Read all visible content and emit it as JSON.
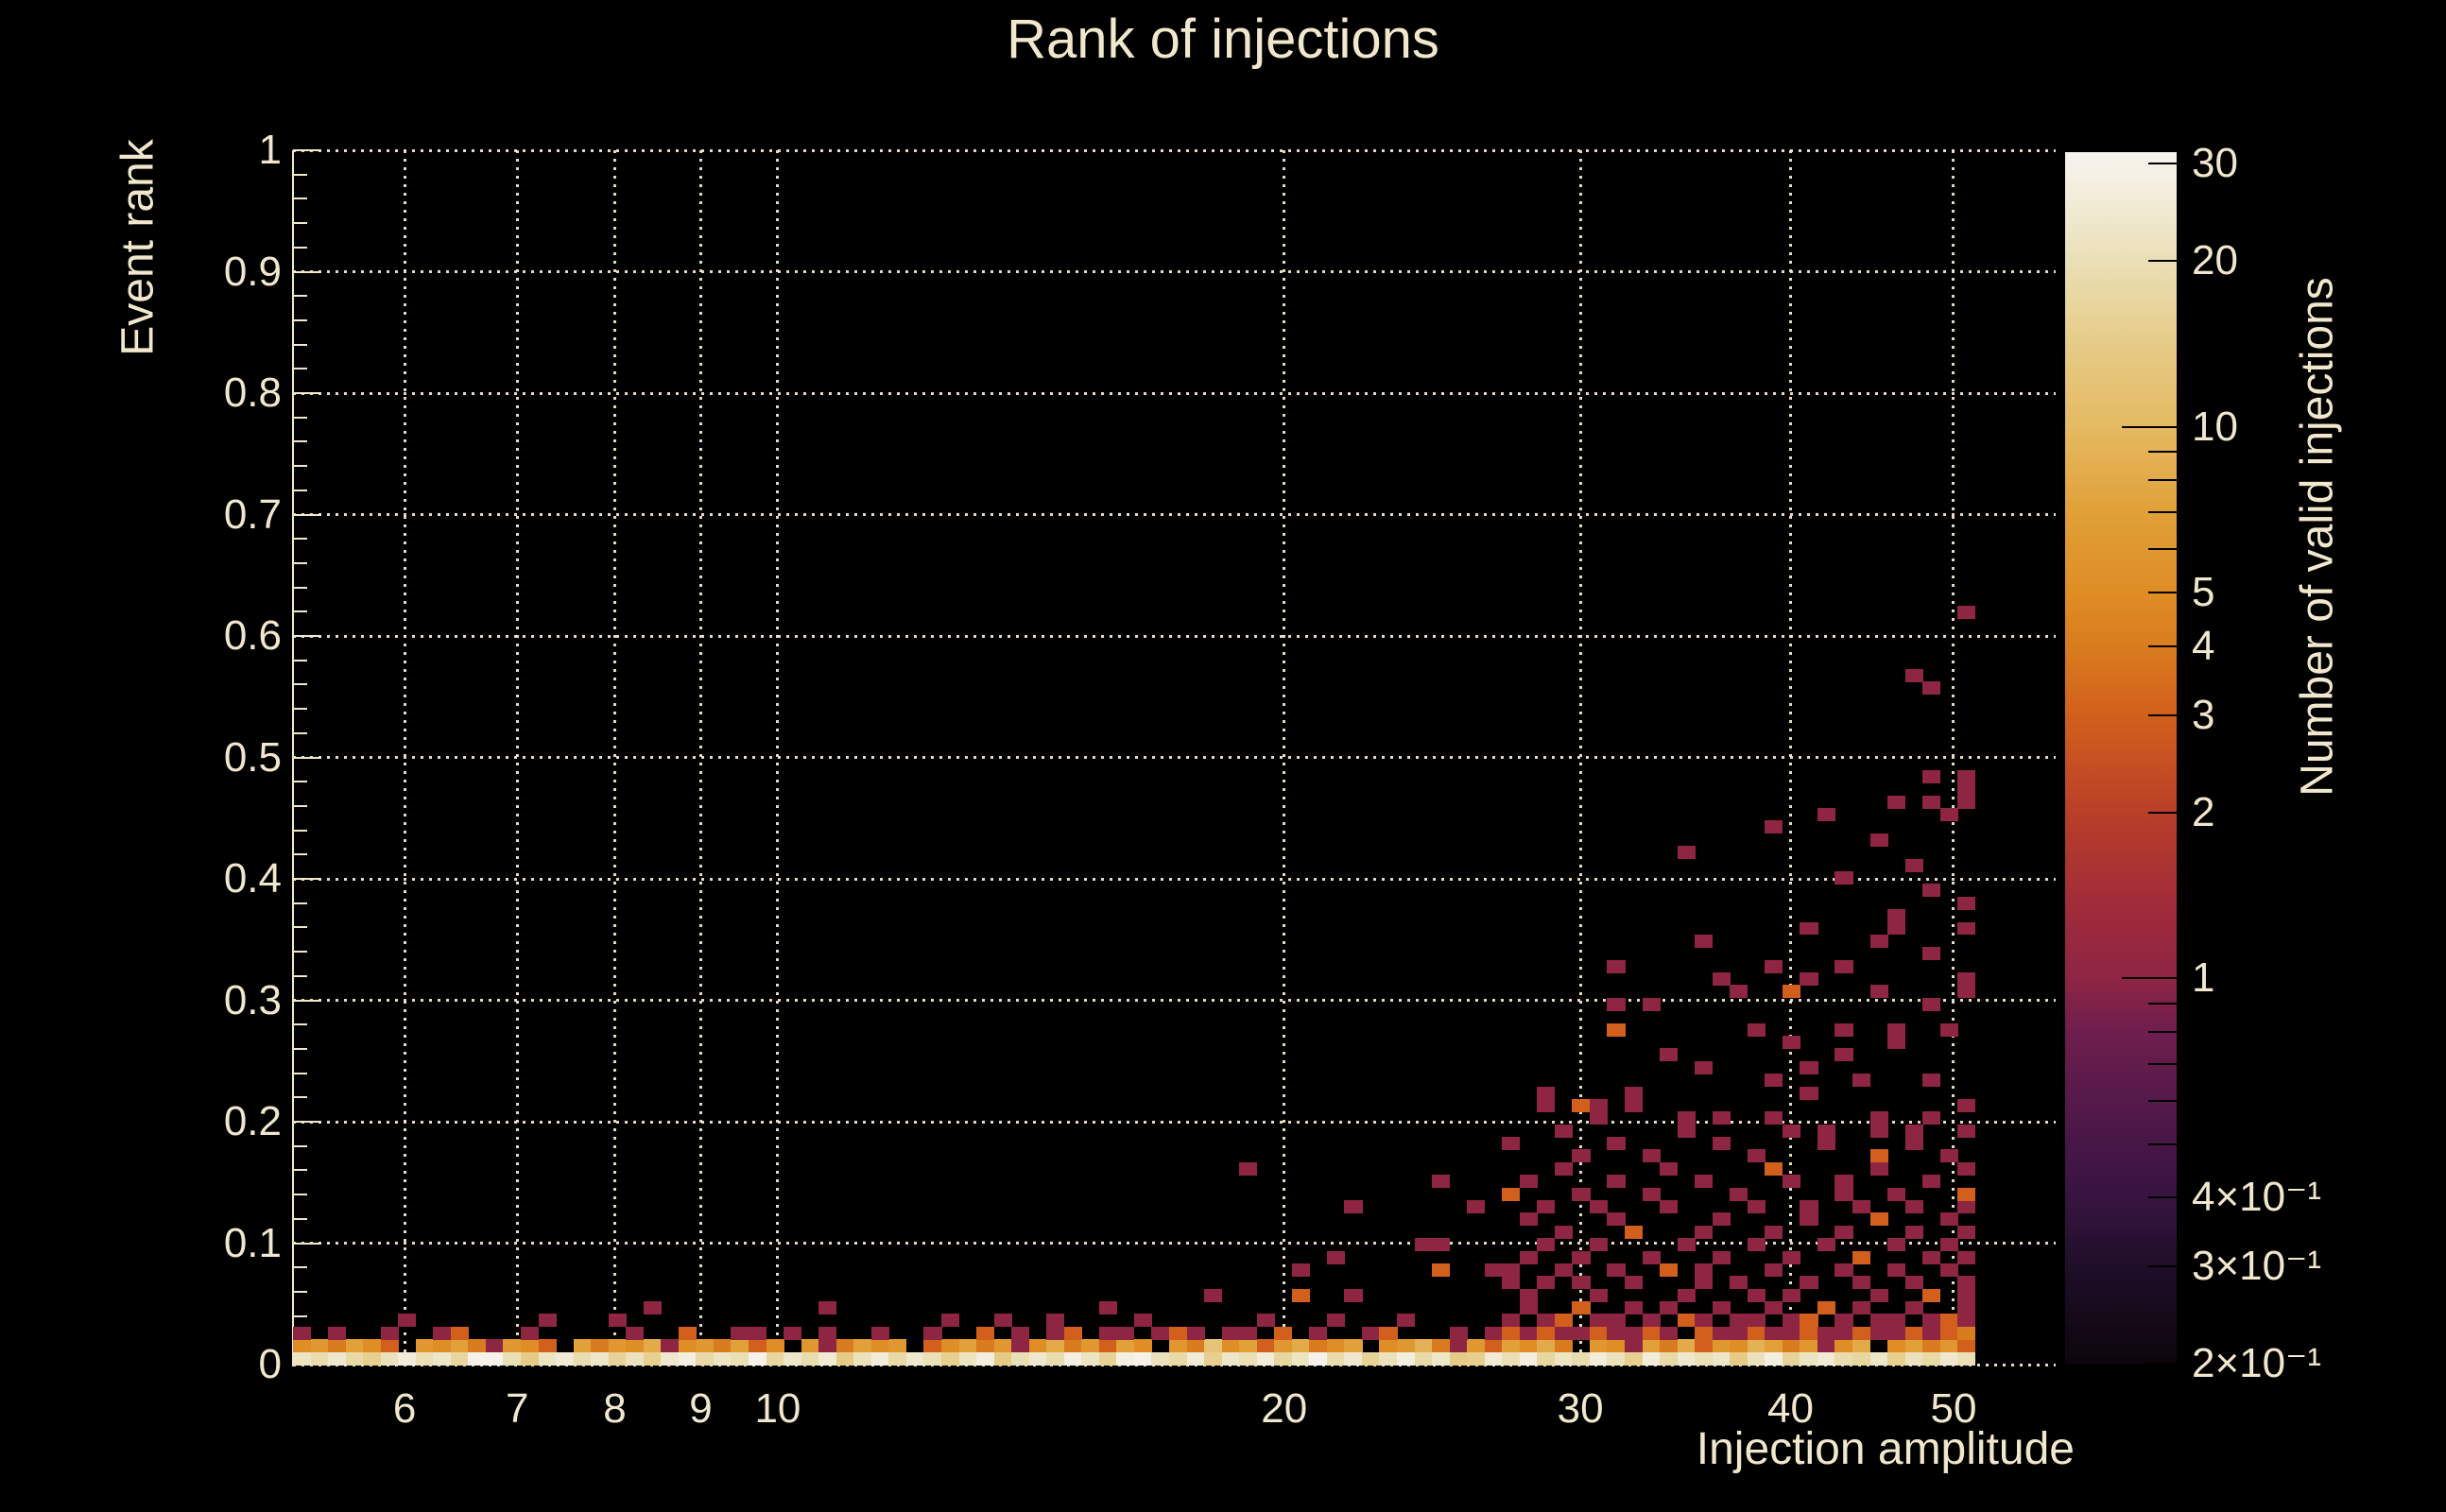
{
  "title": "Rank of injections",
  "colors": {
    "background": "#000000",
    "text": "#f0e7cc",
    "gridline": "#efe7ca",
    "colorbar_tick": "#000000"
  },
  "chart_data": {
    "type": "heatmap",
    "title": "Rank of injections",
    "xlabel": "Injection amplitude",
    "ylabel": "Event rank",
    "zlabel": "Number of valid injections",
    "x_scale": "log",
    "xlim": [
      5.15,
      57.5
    ],
    "y_scale": "linear",
    "ylim": [
      0,
      1
    ],
    "grid_on": true,
    "x_ticks": [
      {
        "v": 6,
        "label": "6"
      },
      {
        "v": 7,
        "label": "7"
      },
      {
        "v": 8,
        "label": "8"
      },
      {
        "v": 9,
        "label": "9"
      },
      {
        "v": 10,
        "label": "10"
      },
      {
        "v": 20,
        "label": "20"
      },
      {
        "v": 30,
        "label": "30"
      },
      {
        "v": 40,
        "label": "40"
      },
      {
        "v": 50,
        "label": "50"
      }
    ],
    "y_ticks": [
      {
        "v": 0,
        "label": "0"
      },
      {
        "v": 0.1,
        "label": "0.1"
      },
      {
        "v": 0.2,
        "label": "0.2"
      },
      {
        "v": 0.3,
        "label": "0.3"
      },
      {
        "v": 0.4,
        "label": "0.4"
      },
      {
        "v": 0.5,
        "label": "0.5"
      },
      {
        "v": 0.6,
        "label": "0.6"
      },
      {
        "v": 0.7,
        "label": "0.7"
      },
      {
        "v": 0.8,
        "label": "0.8"
      },
      {
        "v": 0.9,
        "label": "0.9"
      },
      {
        "v": 1,
        "label": "1"
      }
    ],
    "y_minor_step": 0.02,
    "grid": {
      "nx": 96,
      "ny": 96,
      "x_data_min": 5.15,
      "x_data_max": 51.5
    },
    "colorbar": {
      "scale": "log",
      "zlim": [
        0.2,
        31.5
      ],
      "labeled_ticks": [
        {
          "z": 30,
          "label": "30"
        },
        {
          "z": 20,
          "label": "20"
        },
        {
          "z": 10,
          "label": "10"
        },
        {
          "z": 5,
          "label": "5"
        },
        {
          "z": 4,
          "label": "4"
        },
        {
          "z": 3,
          "label": "3"
        },
        {
          "z": 2,
          "label": "2"
        },
        {
          "z": 1,
          "label": "1"
        },
        {
          "z": 0.4,
          "label": "4×10⁻¹"
        },
        {
          "z": 0.3,
          "label": "3×10⁻¹"
        },
        {
          "z": 0.2,
          "label": "2×10⁻¹"
        }
      ],
      "decade_ticks": [
        1,
        10
      ],
      "minor_ticks": [
        0.5,
        0.6,
        0.7,
        0.8,
        0.9,
        6,
        7,
        8,
        9
      ],
      "colormap_stops": [
        [
          0.2,
          "#0b060b"
        ],
        [
          0.3,
          "#200e29"
        ],
        [
          0.4,
          "#371440"
        ],
        [
          0.55,
          "#4e1849"
        ],
        [
          0.8,
          "#6e1e4e"
        ],
        [
          1.0,
          "#8e2543"
        ],
        [
          1.3,
          "#9e2a3c"
        ],
        [
          2.0,
          "#b93f28"
        ],
        [
          3.0,
          "#d2601c"
        ],
        [
          4.0,
          "#d97c1f"
        ],
        [
          5.0,
          "#df8d25"
        ],
        [
          7.0,
          "#e1a038"
        ],
        [
          10,
          "#e5ba62"
        ],
        [
          14,
          "#e6cb86"
        ],
        [
          20,
          "#eadfb5"
        ],
        [
          26,
          "#f2ecd9"
        ],
        [
          31.5,
          "#f7f4ef"
        ]
      ]
    },
    "rows": {
      "row0": [
        22,
        19,
        24,
        18,
        15,
        21,
        26,
        20,
        23,
        17,
        30,
        30,
        20,
        14,
        22,
        25,
        19,
        23,
        16,
        21,
        15,
        24,
        28,
        18,
        22,
        20,
        30,
        17,
        23,
        19,
        25,
        14,
        21,
        26,
        18,
        24,
        20,
        15,
        22,
        27,
        14,
        20,
        24,
        19,
        28,
        22,
        16,
        28,
        30,
        21,
        18,
        25,
        15,
        23,
        20,
        26,
        17,
        22,
        30,
        19,
        24,
        16,
        21,
        27,
        18,
        23,
        14,
        15,
        25,
        20,
        28,
        17,
        22,
        19,
        26,
        21,
        15,
        26,
        18,
        24,
        20,
        23,
        14,
        21,
        27,
        16,
        22,
        25,
        19,
        17,
        23,
        15,
        21,
        18,
        24,
        20
      ],
      "row1": [
        5,
        6,
        4,
        7,
        5,
        3,
        0,
        6,
        5,
        7,
        4,
        1,
        6,
        5,
        3,
        0,
        7,
        4,
        6,
        5,
        8,
        1,
        5,
        6,
        4,
        7,
        3,
        5,
        0,
        6,
        1,
        4,
        7,
        5,
        6,
        0,
        3,
        5,
        7,
        4,
        6,
        1,
        5,
        8,
        4,
        6,
        3,
        7,
        5,
        0,
        6,
        4,
        12,
        5,
        7,
        3,
        6,
        8,
        4,
        5,
        7,
        0,
        5,
        6,
        9,
        4,
        1,
        6,
        3,
        7,
        5,
        8,
        4,
        0,
        6,
        5,
        1,
        7,
        4,
        8,
        3,
        6,
        5,
        9,
        7,
        4,
        6,
        1,
        5,
        8,
        0,
        5,
        7,
        4,
        6,
        3
      ]
    },
    "cells": [
      [
        0,
        2,
        1
      ],
      [
        2,
        2,
        1
      ],
      [
        5,
        2,
        1
      ],
      [
        6,
        3,
        1
      ],
      [
        8,
        2,
        1
      ],
      [
        9,
        2,
        3
      ],
      [
        13,
        2,
        1
      ],
      [
        14,
        3,
        1
      ],
      [
        18,
        3,
        1
      ],
      [
        19,
        2,
        1
      ],
      [
        20,
        4,
        1
      ],
      [
        22,
        2,
        3
      ],
      [
        25,
        2,
        1
      ],
      [
        26,
        2,
        1
      ],
      [
        28,
        2,
        1
      ],
      [
        30,
        2,
        1
      ],
      [
        30,
        4,
        1
      ],
      [
        33,
        2,
        1
      ],
      [
        36,
        2,
        1
      ],
      [
        37,
        3,
        1
      ],
      [
        39,
        2,
        3
      ],
      [
        40,
        3,
        1
      ],
      [
        41,
        2,
        1
      ],
      [
        43,
        2,
        1
      ],
      [
        43,
        3,
        1
      ],
      [
        44,
        2,
        3
      ],
      [
        46,
        4,
        1
      ],
      [
        46,
        2,
        1
      ],
      [
        47,
        2,
        1
      ],
      [
        48,
        3,
        1
      ],
      [
        49,
        2,
        1
      ],
      [
        50,
        2,
        3
      ],
      [
        51,
        2,
        1
      ],
      [
        52,
        5,
        1
      ],
      [
        53,
        2,
        1
      ],
      [
        54,
        2,
        1
      ],
      [
        54,
        15,
        1
      ],
      [
        55,
        3,
        1
      ],
      [
        56,
        2,
        3
      ],
      [
        57,
        5,
        3
      ],
      [
        57,
        7,
        1
      ],
      [
        58,
        2,
        1
      ],
      [
        59,
        3,
        1
      ],
      [
        59,
        8,
        1
      ],
      [
        60,
        5,
        1
      ],
      [
        60,
        12,
        1
      ],
      [
        61,
        2,
        1
      ],
      [
        62,
        2,
        3
      ],
      [
        63,
        3,
        1
      ],
      [
        64,
        9,
        1
      ],
      [
        65,
        7,
        3
      ],
      [
        65,
        9,
        1
      ],
      [
        65,
        14,
        1
      ],
      [
        66,
        2,
        1
      ],
      [
        67,
        12,
        1
      ],
      [
        68,
        2,
        1
      ],
      [
        68,
        7,
        1
      ],
      [
        69,
        2,
        3
      ],
      [
        70,
        2,
        1
      ],
      [
        71,
        2,
        3
      ],
      [
        72,
        2,
        1
      ],
      [
        73,
        2,
        1
      ],
      [
        74,
        2,
        3
      ],
      [
        75,
        2,
        1
      ],
      [
        76,
        2,
        1
      ],
      [
        77,
        2,
        3
      ],
      [
        78,
        2,
        1
      ],
      [
        80,
        2,
        3
      ],
      [
        81,
        2,
        1
      ],
      [
        82,
        2,
        1
      ],
      [
        83,
        2,
        3
      ],
      [
        84,
        2,
        1
      ],
      [
        85,
        2,
        1
      ],
      [
        86,
        2,
        3
      ],
      [
        87,
        2,
        1
      ],
      [
        88,
        2,
        1
      ],
      [
        89,
        2,
        3
      ],
      [
        90,
        2,
        1
      ],
      [
        91,
        2,
        1
      ],
      [
        92,
        2,
        3
      ],
      [
        93,
        2,
        1
      ],
      [
        94,
        2,
        3
      ],
      [
        95,
        2,
        4
      ],
      [
        69,
        3,
        1
      ],
      [
        71,
        3,
        1
      ],
      [
        72,
        3,
        3
      ],
      [
        74,
        3,
        1
      ],
      [
        75,
        3,
        1
      ],
      [
        77,
        3,
        1
      ],
      [
        79,
        3,
        3
      ],
      [
        80,
        3,
        1
      ],
      [
        82,
        3,
        1
      ],
      [
        83,
        3,
        1
      ],
      [
        85,
        3,
        1
      ],
      [
        86,
        3,
        3
      ],
      [
        88,
        3,
        1
      ],
      [
        90,
        3,
        1
      ],
      [
        91,
        3,
        1
      ],
      [
        93,
        3,
        1
      ],
      [
        94,
        3,
        3
      ],
      [
        95,
        3,
        1
      ],
      [
        70,
        4,
        1
      ],
      [
        73,
        4,
        3
      ],
      [
        76,
        4,
        1
      ],
      [
        78,
        4,
        1
      ],
      [
        81,
        4,
        1
      ],
      [
        84,
        4,
        1
      ],
      [
        87,
        4,
        3
      ],
      [
        89,
        4,
        1
      ],
      [
        92,
        4,
        1
      ],
      [
        95,
        4,
        1
      ],
      [
        70,
        5,
        1
      ],
      [
        74,
        5,
        1
      ],
      [
        79,
        5,
        1
      ],
      [
        83,
        5,
        1
      ],
      [
        85,
        5,
        1
      ],
      [
        90,
        5,
        1
      ],
      [
        93,
        5,
        3
      ],
      [
        95,
        5,
        1
      ],
      [
        69,
        6,
        1
      ],
      [
        71,
        6,
        1
      ],
      [
        73,
        6,
        1
      ],
      [
        76,
        6,
        1
      ],
      [
        80,
        6,
        1
      ],
      [
        82,
        6,
        1
      ],
      [
        86,
        6,
        1
      ],
      [
        89,
        6,
        1
      ],
      [
        92,
        6,
        1
      ],
      [
        95,
        6,
        1
      ],
      [
        69,
        7,
        1
      ],
      [
        72,
        7,
        1
      ],
      [
        75,
        7,
        1
      ],
      [
        78,
        7,
        3
      ],
      [
        80,
        7,
        1
      ],
      [
        84,
        7,
        1
      ],
      [
        88,
        7,
        1
      ],
      [
        91,
        7,
        1
      ],
      [
        94,
        7,
        1
      ],
      [
        70,
        8,
        1
      ],
      [
        73,
        8,
        1
      ],
      [
        77,
        8,
        1
      ],
      [
        81,
        8,
        1
      ],
      [
        85,
        8,
        1
      ],
      [
        89,
        8,
        3
      ],
      [
        93,
        8,
        1
      ],
      [
        95,
        8,
        1
      ],
      [
        71,
        9,
        1
      ],
      [
        74,
        9,
        1
      ],
      [
        79,
        9,
        1
      ],
      [
        83,
        9,
        1
      ],
      [
        87,
        9,
        1
      ],
      [
        91,
        9,
        1
      ],
      [
        94,
        9,
        1
      ],
      [
        72,
        10,
        1
      ],
      [
        76,
        10,
        3
      ],
      [
        80,
        10,
        1
      ],
      [
        84,
        10,
        1
      ],
      [
        88,
        10,
        1
      ],
      [
        92,
        10,
        1
      ],
      [
        95,
        10,
        1
      ],
      [
        70,
        11,
        1
      ],
      [
        75,
        11,
        1
      ],
      [
        81,
        11,
        1
      ],
      [
        86,
        11,
        1
      ],
      [
        90,
        11,
        3
      ],
      [
        94,
        11,
        1
      ],
      [
        71,
        12,
        1
      ],
      [
        74,
        12,
        1
      ],
      [
        78,
        12,
        1
      ],
      [
        83,
        12,
        1
      ],
      [
        86,
        12,
        1
      ],
      [
        89,
        12,
        1
      ],
      [
        92,
        12,
        1
      ],
      [
        95,
        12,
        1
      ],
      [
        69,
        13,
        3
      ],
      [
        73,
        13,
        1
      ],
      [
        77,
        13,
        1
      ],
      [
        82,
        13,
        1
      ],
      [
        88,
        13,
        1
      ],
      [
        91,
        13,
        1
      ],
      [
        95,
        13,
        3
      ],
      [
        70,
        14,
        1
      ],
      [
        75,
        14,
        1
      ],
      [
        80,
        14,
        1
      ],
      [
        85,
        14,
        1
      ],
      [
        88,
        14,
        1
      ],
      [
        93,
        14,
        1
      ],
      [
        72,
        15,
        1
      ],
      [
        78,
        15,
        1
      ],
      [
        84,
        15,
        3
      ],
      [
        90,
        15,
        1
      ],
      [
        95,
        15,
        1
      ],
      [
        73,
        16,
        1
      ],
      [
        77,
        16,
        1
      ],
      [
        83,
        16,
        1
      ],
      [
        90,
        16,
        3
      ],
      [
        94,
        16,
        1
      ],
      [
        69,
        17,
        1
      ],
      [
        75,
        17,
        1
      ],
      [
        81,
        17,
        1
      ],
      [
        87,
        17,
        1
      ],
      [
        92,
        17,
        1
      ],
      [
        72,
        18,
        1
      ],
      [
        79,
        18,
        1
      ],
      [
        85,
        18,
        1
      ],
      [
        87,
        18,
        1
      ],
      [
        90,
        18,
        1
      ],
      [
        92,
        18,
        1
      ],
      [
        95,
        18,
        1
      ],
      [
        74,
        19,
        1
      ],
      [
        79,
        19,
        1
      ],
      [
        81,
        19,
        1
      ],
      [
        84,
        19,
        1
      ],
      [
        90,
        19,
        1
      ],
      [
        93,
        19,
        1
      ],
      [
        71,
        20,
        1
      ],
      [
        73,
        20,
        3
      ],
      [
        74,
        20,
        1
      ],
      [
        76,
        20,
        1
      ],
      [
        95,
        20,
        1
      ],
      [
        71,
        21,
        1
      ],
      [
        76,
        21,
        1
      ],
      [
        86,
        21,
        1
      ],
      [
        84,
        22,
        1
      ],
      [
        89,
        22,
        1
      ],
      [
        93,
        22,
        1
      ],
      [
        80,
        23,
        1
      ],
      [
        86,
        23,
        1
      ],
      [
        78,
        24,
        1
      ],
      [
        88,
        24,
        1
      ],
      [
        85,
        25,
        1
      ],
      [
        91,
        25,
        1
      ],
      [
        75,
        26,
        3
      ],
      [
        83,
        26,
        1
      ],
      [
        88,
        26,
        1
      ],
      [
        91,
        26,
        1
      ],
      [
        94,
        26,
        1
      ],
      [
        75,
        28,
        1
      ],
      [
        77,
        28,
        1
      ],
      [
        93,
        28,
        1
      ],
      [
        82,
        29,
        1
      ],
      [
        85,
        29,
        3
      ],
      [
        90,
        29,
        1
      ],
      [
        95,
        29,
        1
      ],
      [
        81,
        30,
        1
      ],
      [
        86,
        30,
        1
      ],
      [
        95,
        30,
        1
      ],
      [
        75,
        31,
        1
      ],
      [
        84,
        31,
        1
      ],
      [
        88,
        31,
        1
      ],
      [
        93,
        32,
        1
      ],
      [
        80,
        33,
        1
      ],
      [
        90,
        33,
        1
      ],
      [
        86,
        34,
        1
      ],
      [
        91,
        34,
        1
      ],
      [
        95,
        34,
        1
      ],
      [
        91,
        35,
        1
      ],
      [
        95,
        36,
        1
      ],
      [
        93,
        37,
        1
      ],
      [
        88,
        38,
        1
      ],
      [
        92,
        39,
        1
      ],
      [
        79,
        40,
        1
      ],
      [
        90,
        41,
        1
      ],
      [
        84,
        42,
        1
      ],
      [
        87,
        43,
        1
      ],
      [
        94,
        43,
        1
      ],
      [
        91,
        44,
        1
      ],
      [
        93,
        44,
        1
      ],
      [
        95,
        44,
        1
      ],
      [
        95,
        45,
        1
      ],
      [
        93,
        46,
        1
      ],
      [
        95,
        46,
        1
      ],
      [
        93,
        53,
        1
      ],
      [
        92,
        54,
        1
      ],
      [
        95,
        59,
        1
      ]
    ]
  }
}
